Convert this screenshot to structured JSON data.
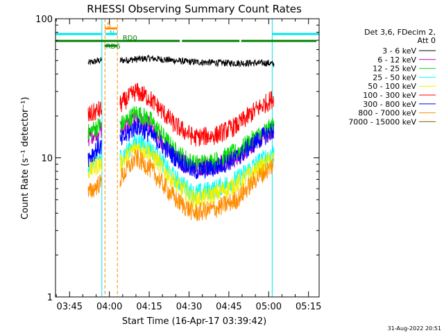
{
  "chart_data": {
    "type": "line",
    "title": "RHESSI Observing Summary Count Rates",
    "xlabel": "Start Time (16-Apr-17 03:39:42)",
    "ylabel": "Count Rate (s⁻¹ detector⁻¹)",
    "y_scale": "log",
    "ylim": [
      1,
      100
    ],
    "y_tick_labels": [
      "1",
      "10",
      "100"
    ],
    "x_range": [
      "03:39:42",
      "05:19:00"
    ],
    "x_tick_labels": [
      "03:45",
      "04:00",
      "04:15",
      "04:30",
      "04:45",
      "05:00",
      "05:15"
    ],
    "legend_title": [
      "Det 3,6, FDecim 2,",
      "Att 0"
    ],
    "legend_position": "right",
    "footer": "31-Aug-2022 20:51",
    "night_marker_color": "#00e5ee",
    "night_boundaries": [
      "03:39:42",
      "03:57:10",
      "05:01:20",
      "05:19:00"
    ],
    "saa_boundary_color": "#ff8c00",
    "saa_boundaries": [
      "03:58:20",
      "04:03:00"
    ],
    "flags": [
      {
        "label": "S",
        "color": "#ff8c00",
        "segments": [
          [
            "03:58:20",
            "04:03:00"
          ]
        ]
      },
      {
        "label": "N",
        "color": "#00e5ee",
        "segments": [
          [
            "03:39:42",
            "03:57:10"
          ],
          [
            "03:58:30",
            "04:03:00"
          ],
          [
            "05:01:20",
            "05:19:00"
          ]
        ]
      },
      {
        "label": "RD0",
        "color": "#008000",
        "segments": [
          [
            "03:39:42",
            "04:26:30"
          ],
          [
            "04:27:20",
            "04:49:00"
          ],
          [
            "04:49:40",
            "05:18:00"
          ]
        ]
      },
      {
        "label": "RD6",
        "color": "#008000",
        "segments": [
          [
            "03:58:10",
            "04:03:00"
          ]
        ]
      }
    ],
    "series": [
      {
        "name": "3 - 6 keV",
        "color": "#000000",
        "points": [
          [
            "03:52:00",
            48
          ],
          [
            "03:56:00",
            50
          ],
          [
            "04:04:00",
            50
          ],
          [
            "04:15:00",
            52
          ],
          [
            "04:30:00",
            49
          ],
          [
            "04:45:00",
            48
          ],
          [
            "05:00:00",
            48
          ],
          [
            "05:02:00",
            47
          ]
        ]
      },
      {
        "name": "6 - 12 keV",
        "color": "#c000c0",
        "points": [
          [
            "03:52:00",
            14
          ],
          [
            "03:56:00",
            16
          ],
          [
            "04:04:00",
            16
          ],
          [
            "04:10:00",
            19
          ],
          [
            "04:15:00",
            17
          ],
          [
            "04:25:00",
            10
          ],
          [
            "04:32:00",
            8.5
          ],
          [
            "04:40:00",
            9
          ],
          [
            "04:48:00",
            10
          ],
          [
            "04:55:00",
            13
          ],
          [
            "05:02:00",
            16
          ]
        ]
      },
      {
        "name": "12 - 25 keV",
        "color": "#00e000",
        "points": [
          [
            "03:52:00",
            15
          ],
          [
            "03:56:00",
            17
          ],
          [
            "04:04:00",
            17
          ],
          [
            "04:10:00",
            21
          ],
          [
            "04:15:00",
            19
          ],
          [
            "04:25:00",
            11
          ],
          [
            "04:32:00",
            9
          ],
          [
            "04:40:00",
            9.5
          ],
          [
            "04:48:00",
            11
          ],
          [
            "04:55:00",
            14
          ],
          [
            "05:02:00",
            17
          ]
        ]
      },
      {
        "name": "25 - 50 keV",
        "color": "#00ffff",
        "points": [
          [
            "03:52:00",
            9
          ],
          [
            "03:56:00",
            10
          ],
          [
            "04:04:00",
            10
          ],
          [
            "04:10:00",
            13
          ],
          [
            "04:15:00",
            12
          ],
          [
            "04:25:00",
            7
          ],
          [
            "04:32:00",
            5.5
          ],
          [
            "04:40:00",
            6
          ],
          [
            "04:48:00",
            7
          ],
          [
            "04:55:00",
            9
          ],
          [
            "05:02:00",
            11
          ]
        ]
      },
      {
        "name": "50 - 100 keV",
        "color": "#f0f000",
        "points": [
          [
            "03:52:00",
            8
          ],
          [
            "03:56:00",
            9
          ],
          [
            "04:04:00",
            9
          ],
          [
            "04:10:00",
            12
          ],
          [
            "04:15:00",
            11
          ],
          [
            "04:25:00",
            6.5
          ],
          [
            "04:32:00",
            5
          ],
          [
            "04:40:00",
            5.5
          ],
          [
            "04:48:00",
            6.5
          ],
          [
            "04:55:00",
            8
          ],
          [
            "05:02:00",
            10
          ]
        ]
      },
      {
        "name": "100 - 300 keV",
        "color": "#ff0000",
        "points": [
          [
            "03:52:00",
            20
          ],
          [
            "03:56:00",
            22
          ],
          [
            "04:04:00",
            24
          ],
          [
            "04:10:00",
            30
          ],
          [
            "04:15:00",
            27
          ],
          [
            "04:25:00",
            17
          ],
          [
            "04:32:00",
            14
          ],
          [
            "04:40:00",
            14.5
          ],
          [
            "04:48:00",
            17
          ],
          [
            "04:55:00",
            22
          ],
          [
            "05:02:00",
            27
          ]
        ]
      },
      {
        "name": "300 - 800 keV",
        "color": "#0000ff",
        "points": [
          [
            "03:52:00",
            10
          ],
          [
            "03:56:00",
            12
          ],
          [
            "04:04:00",
            13
          ],
          [
            "04:10:00",
            17
          ],
          [
            "04:15:00",
            15
          ],
          [
            "04:25:00",
            10
          ],
          [
            "04:32:00",
            8
          ],
          [
            "04:40:00",
            8.5
          ],
          [
            "04:48:00",
            10
          ],
          [
            "04:55:00",
            13
          ],
          [
            "05:02:00",
            16
          ]
        ]
      },
      {
        "name": "800 - 7000 keV",
        "color": "#ff8c00",
        "points": [
          [
            "03:52:00",
            5.5
          ],
          [
            "03:56:00",
            6.5
          ],
          [
            "04:04:00",
            7
          ],
          [
            "04:10:00",
            10
          ],
          [
            "04:15:00",
            8.5
          ],
          [
            "04:25:00",
            5
          ],
          [
            "04:32:00",
            4
          ],
          [
            "04:40:00",
            4.3
          ],
          [
            "04:48:00",
            5
          ],
          [
            "04:55:00",
            7
          ],
          [
            "05:02:00",
            9
          ]
        ]
      },
      {
        "name": "7000 - 15000 keV",
        "color": "#8b5a00",
        "points": []
      }
    ]
  }
}
